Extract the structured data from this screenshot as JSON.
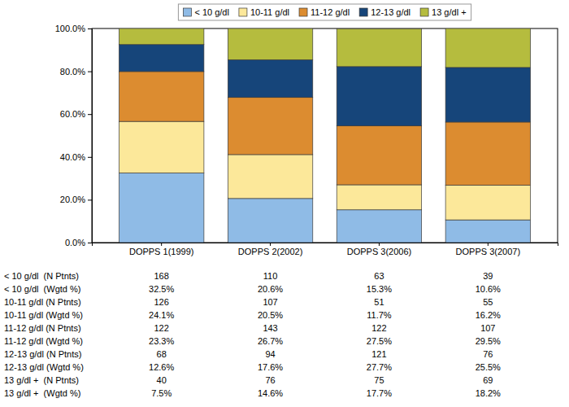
{
  "chart_data": {
    "type": "bar",
    "stacked": true,
    "legend": "top",
    "grid": false,
    "categories": [
      "DOPPS 1(1999)",
      "DOPPS 2(2002)",
      "DOPPS 3(2006)",
      "DOPPS 3(2007)"
    ],
    "series": [
      {
        "name": "< 10 g/dl",
        "color": "#8fbbe6",
        "values": [
          32.5,
          20.6,
          15.3,
          10.6
        ]
      },
      {
        "name": "10-11 g/dl",
        "color": "#fce89a",
        "values": [
          24.1,
          20.5,
          11.7,
          16.2
        ]
      },
      {
        "name": "11-12 g/dl",
        "color": "#dc8c30",
        "values": [
          23.3,
          26.7,
          27.5,
          29.5
        ]
      },
      {
        "name": "12-13 g/dl",
        "color": "#16457a",
        "values": [
          12.6,
          17.6,
          27.7,
          25.5
        ]
      },
      {
        "name": "13 g/dl +",
        "color": "#b5bc3e",
        "values": [
          7.5,
          14.6,
          17.7,
          18.2
        ]
      }
    ],
    "ylim": [
      0,
      100
    ],
    "yticks": [
      {
        "value": 0,
        "label": "0.0%"
      },
      {
        "value": 20,
        "label": "20.0%"
      },
      {
        "value": 40,
        "label": "40.0%"
      },
      {
        "value": 60,
        "label": "60.0%"
      },
      {
        "value": 80,
        "label": "80.0%"
      },
      {
        "value": 100,
        "label": "100.0%"
      }
    ]
  },
  "table": {
    "rows": [
      {
        "label": "< 10 g/dl  (N Ptnts)",
        "cells": [
          168,
          110,
          63,
          39
        ]
      },
      {
        "label": "< 10 g/dl  (Wgtd %)",
        "cells": [
          "32.5%",
          "20.6%",
          "15.3%",
          "10.6%"
        ]
      },
      {
        "label": "10-11 g/dl (N Ptnts)",
        "cells": [
          126,
          107,
          51,
          55
        ]
      },
      {
        "label": "10-11 g/dl (Wgtd %)",
        "cells": [
          "24.1%",
          "20.5%",
          "11.7%",
          "16.2%"
        ]
      },
      {
        "label": "11-12 g/dl (N Ptnts)",
        "cells": [
          122,
          143,
          122,
          107
        ]
      },
      {
        "label": "11-12 g/dl (Wgtd %)",
        "cells": [
          "23.3%",
          "26.7%",
          "27.5%",
          "29.5%"
        ]
      },
      {
        "label": "12-13 g/dl (N Ptnts)",
        "cells": [
          68,
          94,
          121,
          76
        ]
      },
      {
        "label": "12-13 g/dl (Wgtd %)",
        "cells": [
          "12.6%",
          "17.6%",
          "27.7%",
          "25.5%"
        ]
      },
      {
        "label": "13 g/dl +  (N Ptnts)",
        "cells": [
          40,
          76,
          75,
          69
        ]
      },
      {
        "label": "13 g/dl +  (Wgtd %)",
        "cells": [
          "7.5%",
          "14.6%",
          "17.7%",
          "18.2%"
        ]
      }
    ]
  }
}
